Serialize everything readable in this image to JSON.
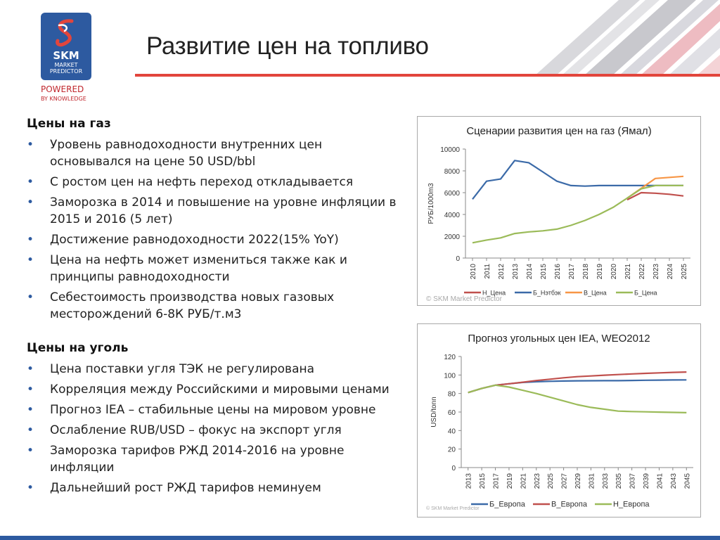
{
  "logo": {
    "name": "SKM",
    "sub": "MARKET PREDICTOR",
    "powered": "POWERED",
    "by": "BY KNOWLEDGE"
  },
  "title": "Развитие цен на топливо",
  "gas": {
    "heading": "Цены на газ",
    "bullets": [
      "Уровень равнодоходности внутренних цен основывался на цене 50 USD/bbl",
      "С ростом цен на нефть переход откладывается",
      "Заморозка в 2014 и повышение на уровне инфляции в 2015 и 2016 (5 лет)",
      "Достижение равнодоходности 2022(15% YoY)",
      "Цена на нефть может измениться также как и принципы равнодоходности",
      "Себестоимость производства новых  газовых месторождений 6-8К РУБ/т.м3"
    ]
  },
  "coal": {
    "heading": "Цены на уголь",
    "bullets": [
      "Цена поставки угля ТЭК не регулирована",
      "Корреляция между Российскими и мировыми ценами",
      "Прогноз IEA – стабильные цены на мировом уровне",
      "Ослабление RUB/USD – фокус на экспорт угля",
      "Заморозка тарифов РЖД 2014-2016 на уровне инфляции",
      "Дальнейший рост РЖД тарифов неминуем"
    ]
  },
  "chart_data": [
    {
      "type": "line",
      "title": "Сценарии развития цен на газ (Ямал)",
      "xlabel": "",
      "ylabel": "РУБ/1000m3",
      "ylim": [
        0,
        10000
      ],
      "yticks": [
        0,
        2000,
        4000,
        6000,
        8000,
        10000
      ],
      "x": [
        "2010",
        "2011",
        "2012",
        "2013",
        "2014",
        "2015",
        "2016",
        "2017",
        "2018",
        "2019",
        "2020",
        "2021",
        "2022",
        "2023",
        "2024",
        "2025"
      ],
      "watermark": "© SKM Market Predictor",
      "legend_position": "bottom",
      "grid": false,
      "series": [
        {
          "name": "Б_Нэтбэк",
          "color": "#3b6aa8",
          "values": [
            5400,
            7050,
            7250,
            8950,
            8750,
            7900,
            7050,
            6650,
            6600,
            6650,
            6650,
            6650,
            6650,
            6650,
            6650,
            6650
          ]
        },
        {
          "name": "Н_Цена",
          "color": "#c0504d",
          "values": [
            null,
            null,
            null,
            null,
            null,
            null,
            null,
            null,
            null,
            null,
            null,
            5350,
            6000,
            5950,
            5850,
            5700
          ]
        },
        {
          "name": "В_Цена",
          "color": "#f79646",
          "values": [
            null,
            null,
            null,
            null,
            null,
            null,
            null,
            null,
            null,
            null,
            null,
            5500,
            6400,
            7300,
            7400,
            7500
          ]
        },
        {
          "name": "Б_Цена",
          "color": "#9bbb59",
          "values": [
            1400,
            1650,
            1850,
            2250,
            2400,
            2500,
            2650,
            3000,
            3450,
            4000,
            4650,
            5500,
            6350,
            6650,
            6650,
            6650
          ]
        }
      ],
      "legend_order": [
        "Н_Цена",
        "Б_Нэтбэк",
        "В_Цена",
        "Б_Цена"
      ]
    },
    {
      "type": "line",
      "title": "Прогноз угольных цен IEA, WEO2012",
      "xlabel": "",
      "ylabel": "USD/tonn",
      "ylim": [
        0,
        120
      ],
      "yticks": [
        0,
        20,
        40,
        60,
        80,
        100,
        120
      ],
      "x": [
        "2013",
        "2015",
        "2017",
        "2019",
        "2021",
        "2023",
        "2025",
        "2027",
        "2029",
        "2031",
        "2033",
        "2035",
        "2037",
        "2039",
        "2041",
        "2043",
        "2045"
      ],
      "watermark": "© SKM Market Predictor",
      "legend_position": "bottom",
      "grid": false,
      "series": [
        {
          "name": "Б_Европа",
          "color": "#3b6aa8",
          "values": [
            81,
            85.5,
            89,
            90.5,
            92,
            92.7,
            93.2,
            93.5,
            93.7,
            93.8,
            93.9,
            93.9,
            94.1,
            94.3,
            94.5,
            94.6,
            94.7
          ]
        },
        {
          "name": "В_Европа",
          "color": "#c0504d",
          "values": [
            81,
            85.5,
            89,
            90.5,
            92.2,
            94,
            95.5,
            97,
            98.2,
            99,
            99.8,
            100.5,
            101.2,
            101.8,
            102.3,
            102.8,
            103.2
          ]
        },
        {
          "name": "Н_Европа",
          "color": "#9bbb59",
          "values": [
            81,
            85.5,
            89,
            87,
            83.5,
            80,
            76,
            72,
            68,
            65,
            63,
            61,
            60.5,
            60.2,
            59.9,
            59.6,
            59.3
          ]
        }
      ]
    }
  ]
}
